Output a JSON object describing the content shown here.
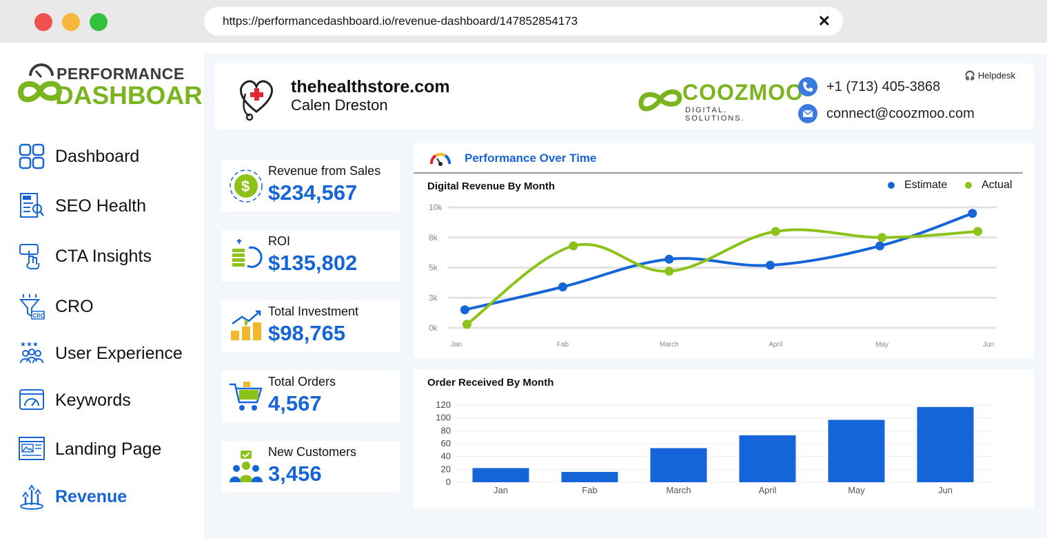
{
  "browser": {
    "url": "https://performancedashboard.io/revenue-dashboard/147852854173",
    "close_glyph": "✕"
  },
  "logo": {
    "top": "PERFORMANCE",
    "bottom": "DASHBOARD"
  },
  "sidebar": {
    "items": [
      {
        "label": "Dashboard",
        "icon": "dashboard-grid-icon"
      },
      {
        "label": "SEO Health",
        "icon": "seo-document-icon"
      },
      {
        "label": "CTA Insights",
        "icon": "pointer-hand-icon"
      },
      {
        "label": "CRO",
        "icon": "funnel-cro-icon"
      },
      {
        "label": "User Experience",
        "icon": "users-stars-icon"
      },
      {
        "label": "Keywords",
        "icon": "gauge-window-icon"
      },
      {
        "label": "Landing Page",
        "icon": "landing-page-icon"
      },
      {
        "label": "Revenue",
        "icon": "revenue-growth-icon",
        "active": true
      }
    ]
  },
  "header": {
    "store": "thehealthstore.com",
    "owner": "Calen Dreston",
    "partner_logo": {
      "word": "COOZMOO",
      "sub": "DIGITAL. SOLUTIONS."
    },
    "phone": "+1 (713) 405-3868",
    "email": "connect@coozmoo.com",
    "helpdesk": "Helpdesk"
  },
  "kpis": [
    {
      "label": "Revenue from Sales",
      "value": "$234,567",
      "icon": "dollar-coin-icon"
    },
    {
      "label": "ROI",
      "value": "$135,802",
      "icon": "coins-return-icon"
    },
    {
      "label": "Total Investment",
      "value": "$98,765",
      "icon": "investment-growth-icon"
    },
    {
      "label": "Total Orders",
      "value": "4,567",
      "icon": "shopping-cart-icon"
    },
    {
      "label": "New Customers",
      "value": "3,456",
      "icon": "new-customers-icon"
    }
  ],
  "performance": {
    "title": "Performance Over Time"
  },
  "colors": {
    "accent": "#1565d8",
    "estimate": "#1565d8",
    "actual": "#8cc21a",
    "brand_green": "#7ab51d"
  },
  "chart_data": [
    {
      "type": "line",
      "title": "Digital Revenue By Month",
      "x": [
        "Jan",
        "Fab",
        "March",
        "April",
        "May",
        "Jun"
      ],
      "y_ticks": [
        "0k",
        "3k",
        "5k",
        "8k",
        "10k"
      ],
      "ylim": [
        0,
        10000
      ],
      "legend_position": "top-right",
      "grid": true,
      "series": [
        {
          "name": "Estimate",
          "points": [
            [
              0.08,
              1500
            ],
            [
              1.0,
              3400
            ],
            [
              2.0,
              5700
            ],
            [
              2.95,
              5200
            ],
            [
              3.98,
              6800
            ],
            [
              4.85,
              9500
            ]
          ]
        },
        {
          "name": "Actual",
          "points": [
            [
              0.1,
              300
            ],
            [
              1.1,
              6800
            ],
            [
              2.0,
              4700
            ],
            [
              3.0,
              8000
            ],
            [
              4.0,
              7500
            ],
            [
              4.9,
              8000
            ]
          ]
        }
      ]
    },
    {
      "type": "bar",
      "title": "Order Received By Month",
      "categories": [
        "Jan",
        "Fab",
        "March",
        "April",
        "May",
        "Jun"
      ],
      "values": [
        22,
        16,
        53,
        73,
        97,
        117
      ],
      "y_ticks": [
        "0",
        "20",
        "40",
        "60",
        "80",
        "100",
        "120"
      ],
      "ylim": [
        0,
        120
      ],
      "grid": true
    }
  ]
}
